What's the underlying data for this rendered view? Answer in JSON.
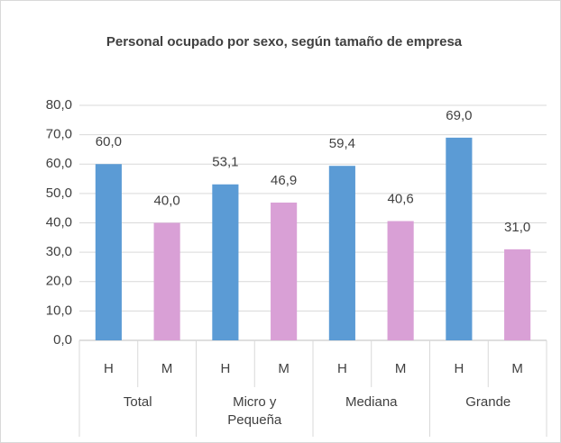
{
  "chart_data": {
    "type": "bar",
    "title": "Personal ocupado por sexo, según tamaño de empresa",
    "categories": [
      "H",
      "M",
      "H",
      "M",
      "H",
      "M",
      "H",
      "M"
    ],
    "groups": [
      "Total",
      "Micro y Pequeña",
      "Mediana",
      "Grande"
    ],
    "values": [
      60.0,
      40.0,
      53.1,
      46.9,
      59.4,
      40.6,
      69.0,
      31.0
    ],
    "value_labels": [
      "60,0",
      "40,0",
      "53,1",
      "46,9",
      "59,4",
      "40,6",
      "69,0",
      "31,0"
    ],
    "colors": [
      "#5b9bd5",
      "#d9a0d6",
      "#5b9bd5",
      "#d9a0d6",
      "#5b9bd5",
      "#d9a0d6",
      "#5b9bd5",
      "#d9a0d6"
    ],
    "ylim": [
      0,
      80
    ],
    "yticks": [
      {
        "value": 0,
        "label": "0,0"
      },
      {
        "value": 10,
        "label": "10,0"
      },
      {
        "value": 20,
        "label": "20,0"
      },
      {
        "value": 30,
        "label": "30,0"
      },
      {
        "value": 40,
        "label": "40,0"
      },
      {
        "value": 50,
        "label": "50,0"
      },
      {
        "value": 60,
        "label": "60,0"
      },
      {
        "value": 70,
        "label": "70,0"
      },
      {
        "value": 80,
        "label": "80,0"
      }
    ],
    "grid": true
  }
}
